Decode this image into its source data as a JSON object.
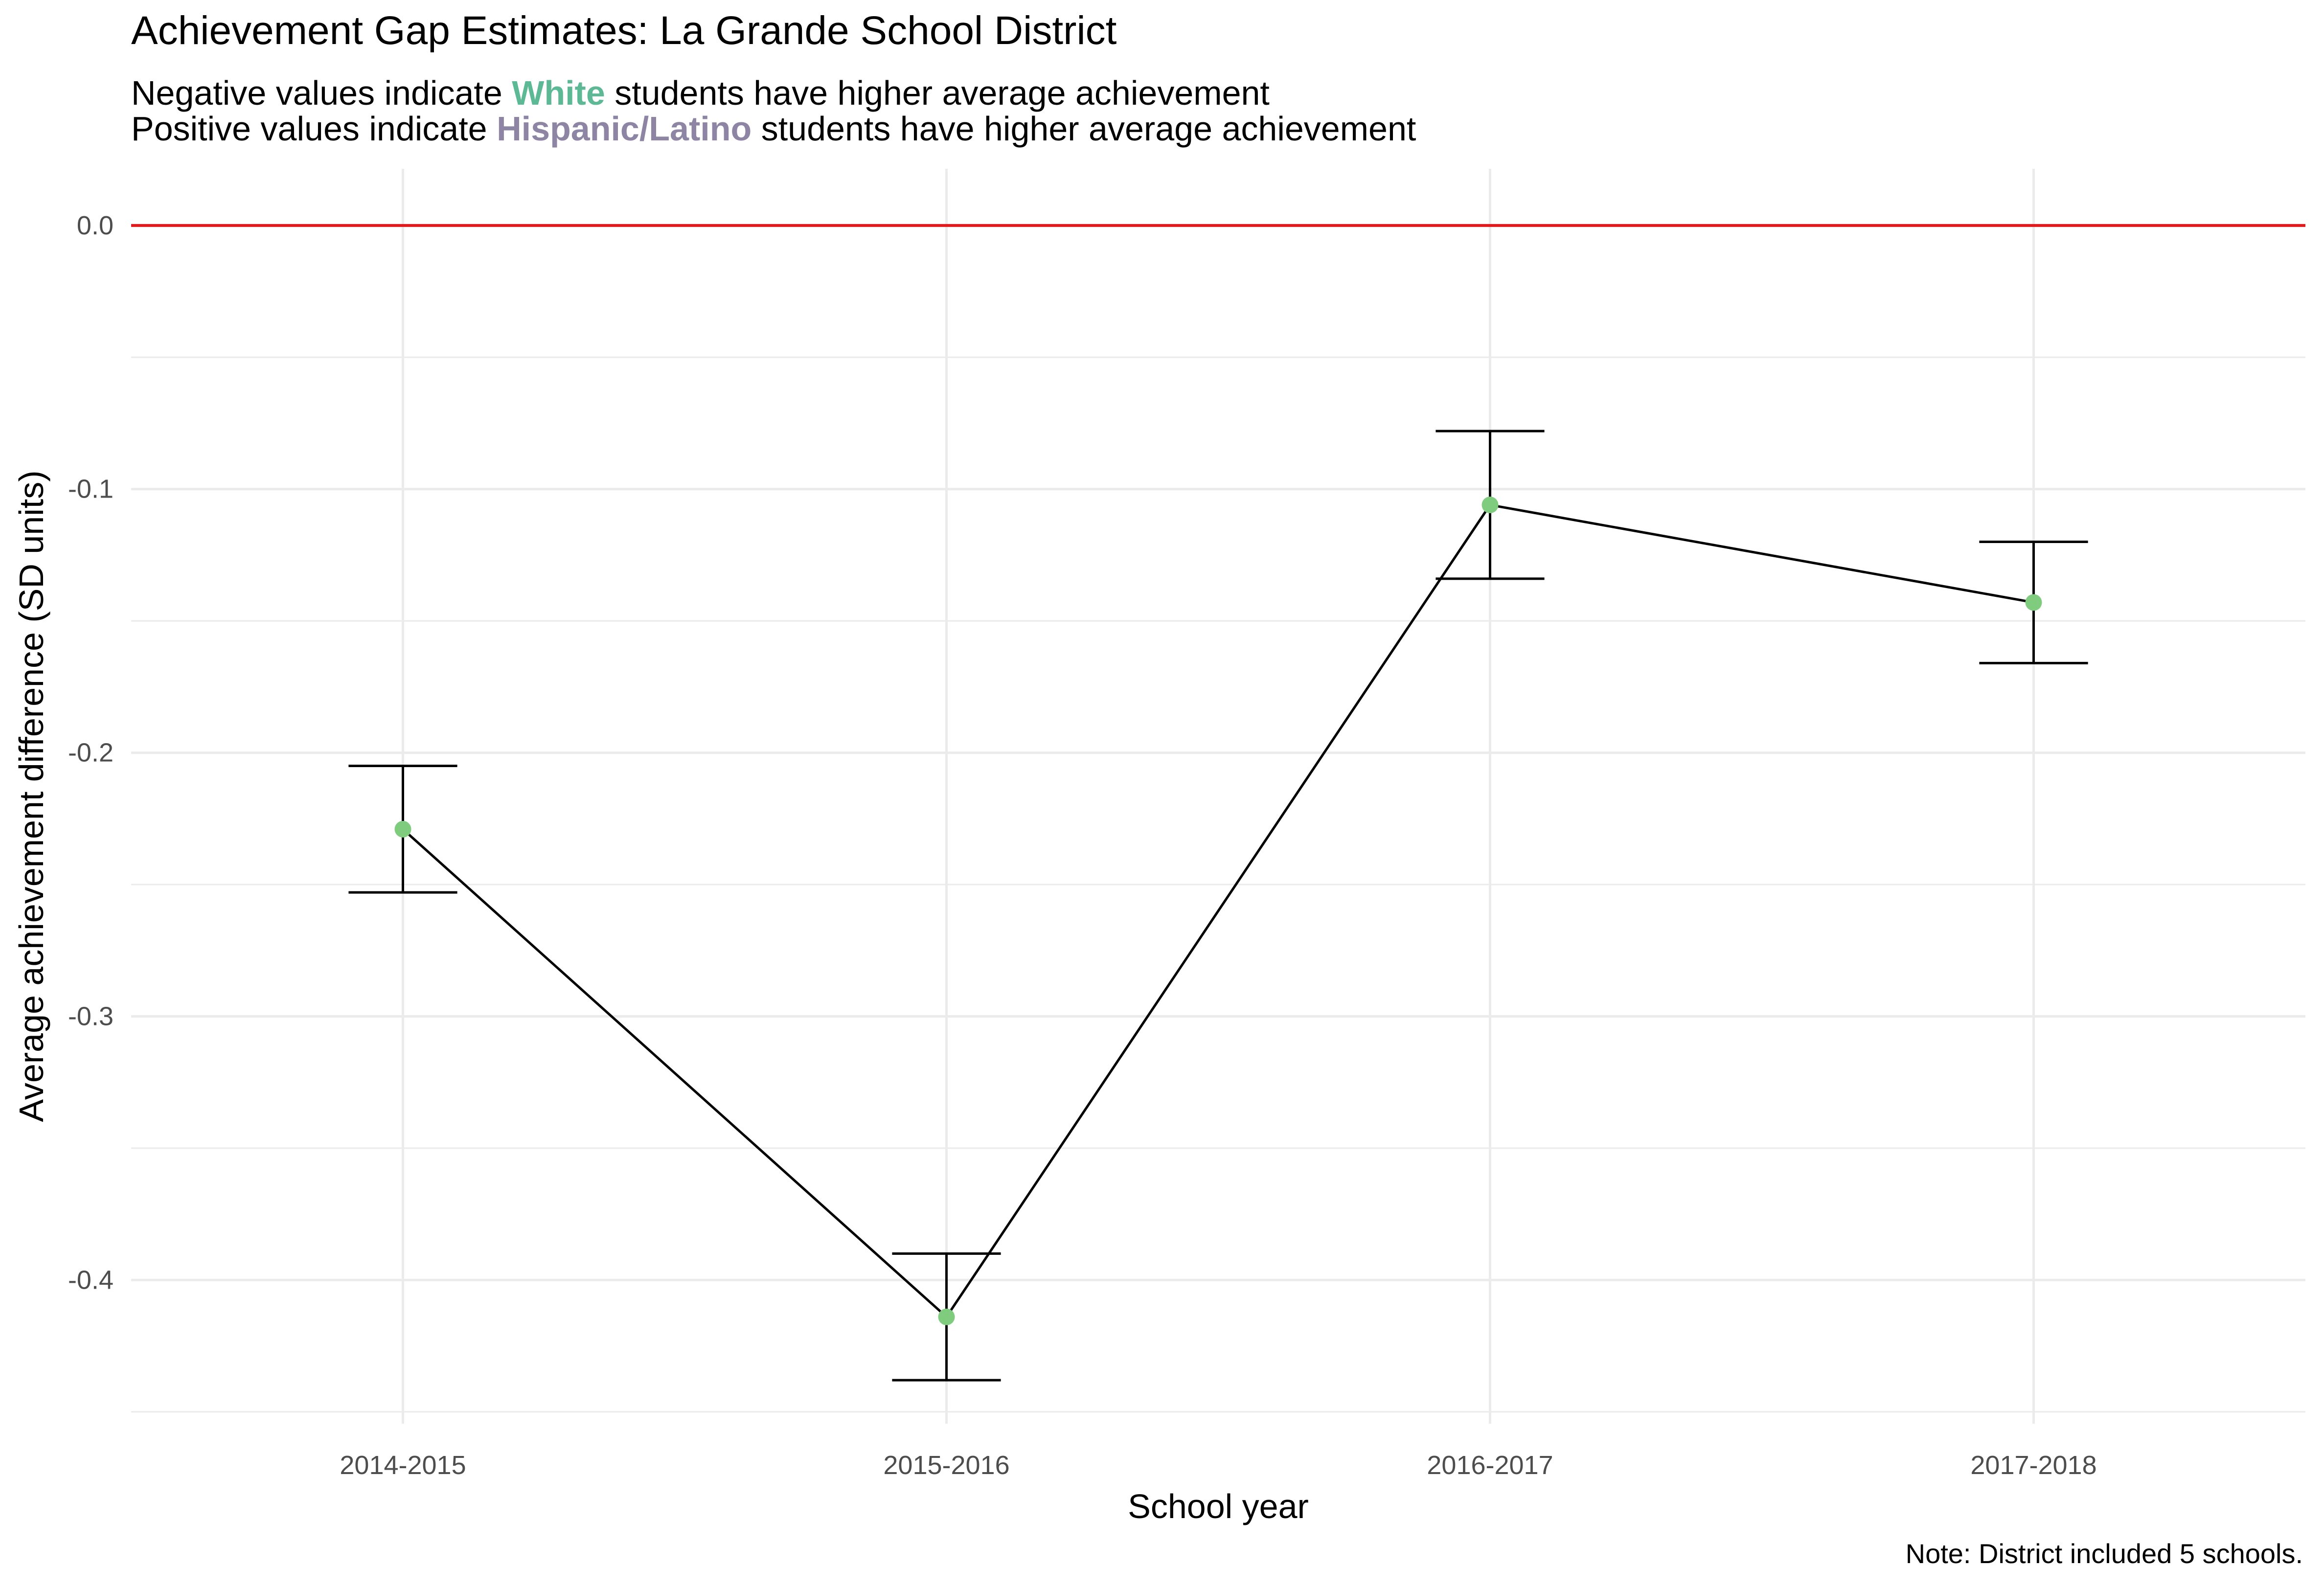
{
  "chart_data": {
    "type": "line",
    "title": "Achievement Gap Estimates: La Grande School District",
    "subtitle": {
      "line1": {
        "before": "Negative values indicate ",
        "highlight": "White",
        "after": " students have higher average achievement"
      },
      "line2": {
        "before": "Positive values indicate ",
        "highlight": "Hispanic/Latino",
        "after": " students have higher average achievement"
      }
    },
    "xlabel": "School year",
    "ylabel": "Average achievement difference (SD units)",
    "caption": "Note: District included 5 schools.",
    "categories": [
      "2014-2015",
      "2015-2016",
      "2016-2017",
      "2017-2018"
    ],
    "series": [
      {
        "values": [
          -0.229,
          -0.414,
          -0.106,
          -0.143
        ],
        "lower": [
          -0.253,
          -0.438,
          -0.134,
          -0.166
        ],
        "upper": [
          -0.205,
          -0.39,
          -0.078,
          -0.12
        ]
      }
    ],
    "y_ticks": [
      0.0,
      -0.1,
      -0.2,
      -0.3,
      -0.4
    ],
    "y_tick_labels": [
      "0.0",
      "-0.1",
      "-0.2",
      "-0.3",
      "-0.4"
    ],
    "ylim": [
      -0.4545,
      0.0215
    ],
    "reference_line": 0.0,
    "grid": true,
    "legend": "none",
    "colors": {
      "point": "#7fcc7f",
      "line": "#000000",
      "errorbar": "#000000",
      "reference_line": "#e31a1c",
      "grid": "#ebebeb",
      "highlight_white": "#5cb895",
      "highlight_hispanic": "#8e84a3",
      "axis_text": "#4d4d4d"
    }
  }
}
